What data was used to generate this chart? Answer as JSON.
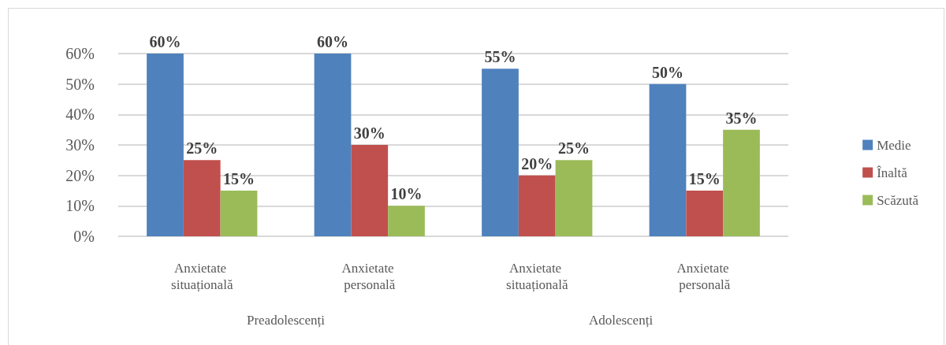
{
  "chart_data": {
    "type": "bar",
    "categories": [
      "Anxietate situațională",
      "Anxietate personală",
      "Anxietate situațională",
      "Anxietate personală"
    ],
    "series": [
      {
        "name": "Medie",
        "color": "#4f81bd",
        "values": [
          60,
          60,
          55,
          50
        ],
        "value_labels": [
          "60%",
          "60%",
          "55%",
          "50%"
        ]
      },
      {
        "name": "Înaltă",
        "color": "#c0504d",
        "values": [
          25,
          30,
          20,
          15
        ],
        "value_labels": [
          "25%",
          "30%",
          "20%",
          "15%"
        ]
      },
      {
        "name": "Scăzută",
        "color": "#9bbb59",
        "values": [
          15,
          10,
          25,
          35
        ],
        "value_labels": [
          "15%",
          "10%",
          "25%",
          "35%"
        ]
      }
    ],
    "ylim": [
      0,
      60
    ],
    "yticks": [
      {
        "value": 0,
        "label": "0%"
      },
      {
        "value": 10,
        "label": "10%"
      },
      {
        "value": 20,
        "label": "20%"
      },
      {
        "value": 30,
        "label": "30%"
      },
      {
        "value": 40,
        "label": "40%"
      },
      {
        "value": 50,
        "label": "50%"
      },
      {
        "value": 60,
        "label": "60%"
      }
    ],
    "grid": "y",
    "legend": "right",
    "annotations": [
      "Preadolescenți",
      "Adolescenți"
    ]
  }
}
